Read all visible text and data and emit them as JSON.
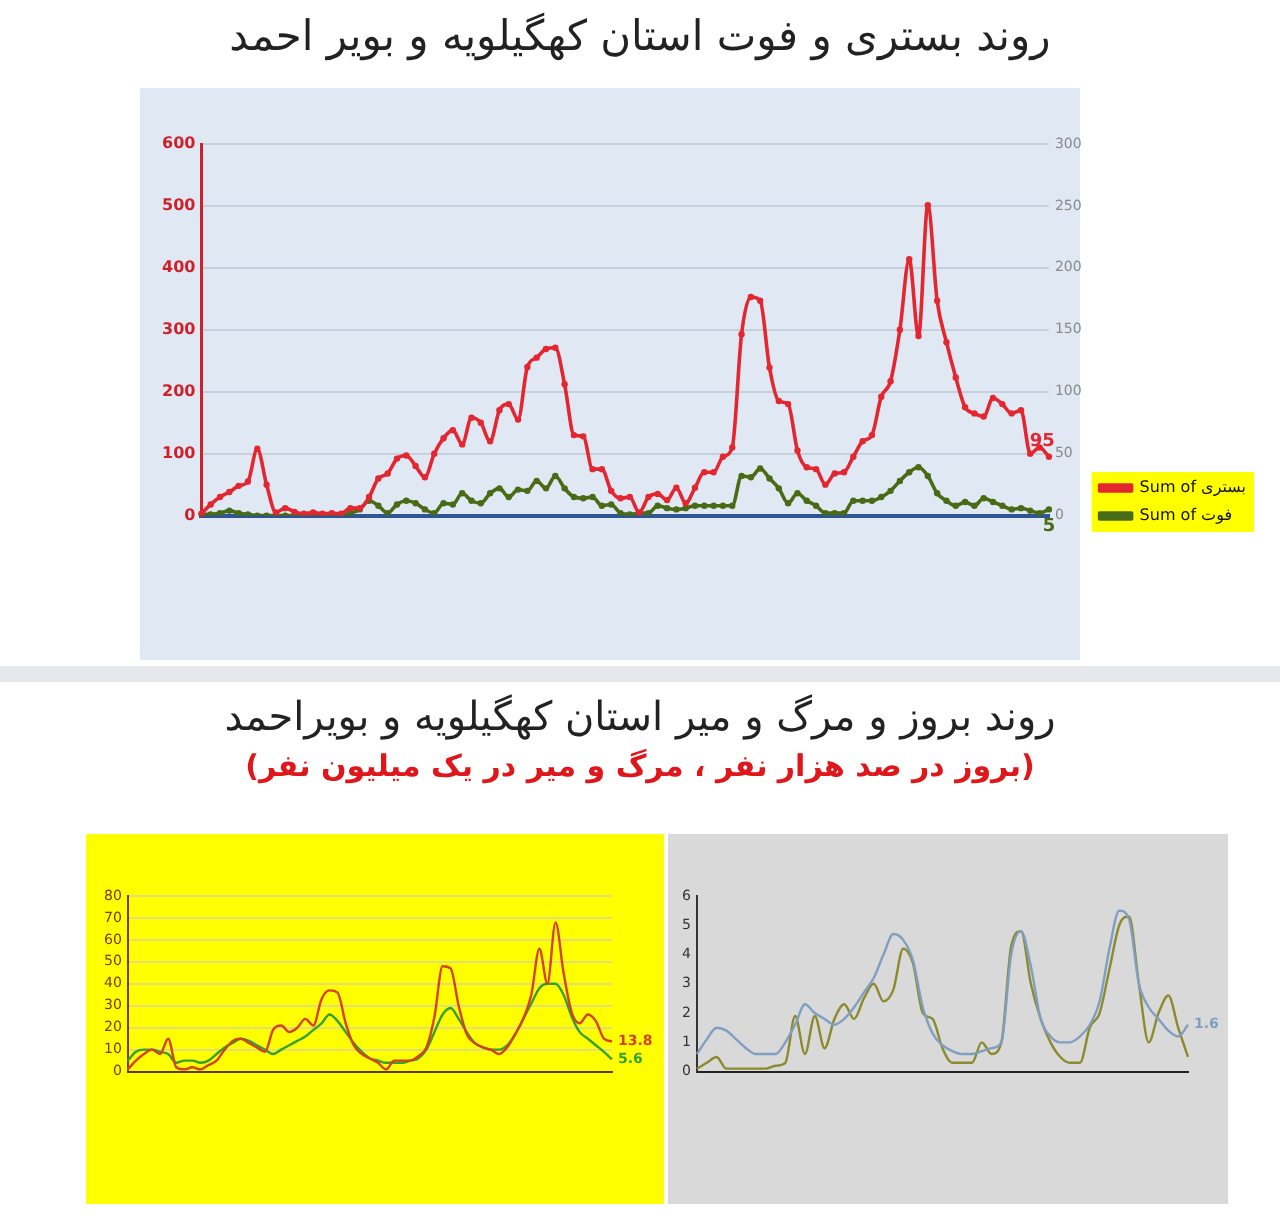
{
  "chart_data": [
    {
      "type": "line",
      "title": "روند بستری و فوت استان کهگیلویه و بویر احمد",
      "categories": [
        null,
        null,
        null,
        null,
        null,
        null,
        null,
        null,
        null,
        null,
        null,
        null,
        null,
        null,
        null,
        null,
        null,
        null,
        null,
        null,
        null,
        null,
        null,
        null,
        null,
        null,
        null,
        null,
        null,
        null,
        null,
        null,
        null,
        null,
        null,
        null,
        null,
        null,
        null,
        null,
        null,
        null,
        null,
        null,
        null,
        null,
        null,
        null,
        null,
        null,
        null,
        null,
        null,
        null,
        null,
        null,
        null,
        null,
        null,
        null,
        null,
        null,
        null,
        null,
        null,
        null,
        null,
        null,
        null,
        null,
        null,
        null,
        null,
        null,
        null,
        null,
        null,
        null,
        null,
        null,
        null,
        null,
        null,
        null,
        null,
        null,
        null,
        null,
        null,
        null,
        null,
        null
      ],
      "series": [
        {
          "name": "Sum of بستری",
          "color": "#e3262f",
          "values": [
            3,
            18,
            30,
            38,
            48,
            55,
            108,
            50,
            5,
            12,
            6,
            3,
            5,
            3,
            4,
            3,
            12,
            12,
            30,
            60,
            68,
            92,
            97,
            80,
            62,
            100,
            125,
            138,
            115,
            158,
            150,
            120,
            170,
            180,
            155,
            240,
            255,
            269,
            271,
            212,
            130,
            128,
            75,
            75,
            40,
            28,
            30,
            5,
            30,
            35,
            25,
            45,
            20,
            45,
            70,
            70,
            95,
            110,
            293,
            353,
            347,
            239,
            185,
            180,
            105,
            78,
            75,
            50,
            68,
            70,
            95,
            120,
            130,
            192,
            217,
            300,
            414,
            290,
            501,
            347,
            280,
            223,
            175,
            165,
            160,
            190,
            180,
            165,
            170,
            100,
            110,
            95
          ],
          "value_labels": [
            null,
            null,
            null,
            null,
            null,
            null,
            null,
            null,
            null,
            null,
            null,
            null,
            null,
            null,
            null,
            null,
            null,
            null,
            null,
            null,
            null,
            null,
            null,
            null,
            null,
            null,
            null,
            null,
            null,
            null,
            null,
            null,
            null,
            null,
            null,
            null,
            null,
            null,
            null,
            null,
            null,
            null,
            null,
            null,
            null,
            null,
            null,
            null,
            null,
            null,
            null,
            null,
            null,
            null,
            null,
            null,
            null,
            null,
            null,
            null,
            null,
            null,
            null,
            null,
            null,
            null,
            null,
            null,
            null,
            null,
            null,
            null,
            null,
            null,
            null,
            null,
            null,
            null,
            null,
            null,
            null,
            null,
            null,
            null,
            null,
            null,
            null,
            null,
            null,
            null,
            null,
            "95"
          ]
        },
        {
          "name": "Sum of فوت",
          "color": "#4a6b16",
          "axis": "y2",
          "values": [
            1,
            1,
            2,
            4,
            2,
            1,
            0,
            0,
            0,
            0,
            0,
            0,
            0,
            0,
            0,
            0,
            2,
            5,
            12,
            8,
            2,
            9,
            12,
            10,
            5,
            2,
            10,
            9,
            18,
            12,
            10,
            18,
            22,
            15,
            21,
            20,
            28,
            22,
            32,
            22,
            15,
            14,
            15,
            8,
            9,
            2,
            1,
            2,
            2,
            8,
            6,
            5,
            6,
            8,
            8,
            8,
            8,
            8,
            32,
            31,
            38,
            30,
            22,
            10,
            18,
            12,
            8,
            2,
            2,
            2,
            12,
            12,
            12,
            15,
            20,
            28,
            35,
            39,
            32,
            18,
            12,
            8,
            11,
            8,
            14,
            11,
            8,
            5,
            6,
            4,
            2,
            5
          ],
          "value_labels": [
            null,
            null,
            null,
            null,
            null,
            null,
            null,
            null,
            null,
            null,
            null,
            null,
            null,
            null,
            null,
            null,
            null,
            null,
            null,
            null,
            null,
            null,
            null,
            null,
            null,
            null,
            null,
            null,
            null,
            null,
            null,
            null,
            null,
            null,
            null,
            null,
            null,
            null,
            null,
            null,
            null,
            null,
            null,
            null,
            null,
            null,
            null,
            null,
            null,
            null,
            null,
            null,
            null,
            null,
            null,
            null,
            null,
            null,
            null,
            null,
            null,
            null,
            null,
            null,
            null,
            null,
            null,
            null,
            null,
            null,
            null,
            null,
            null,
            null,
            null,
            null,
            null,
            null,
            null,
            null,
            null,
            null,
            null,
            null,
            null,
            null,
            null,
            null,
            null,
            null,
            null,
            "5"
          ]
        }
      ],
      "ylim": [
        0,
        600
      ],
      "yticks": [
        0,
        100,
        200,
        300,
        400,
        500,
        600
      ],
      "y2lim": [
        0,
        300
      ],
      "y2ticks": [
        0,
        50,
        100,
        150,
        200,
        250,
        300
      ],
      "grid": "y",
      "legend": "bottom right",
      "marker": "circle"
    },
    {
      "type": "line",
      "title": "روند بروز و مرگ و میر استان کهگیلویه و بویراحمد",
      "subtitle": "(بروز در صد هزار نفر ، مرگ و میر در یک میلیون نفر)",
      "categories": [
        null,
        null,
        null,
        null,
        null,
        null,
        null,
        null,
        null,
        null,
        null,
        null,
        null,
        null,
        null,
        null,
        null,
        null,
        null,
        null,
        null,
        null,
        null,
        null,
        null,
        null,
        null,
        null,
        null,
        null,
        null,
        null,
        null,
        null,
        null,
        null,
        null,
        null,
        null,
        null,
        null,
        null,
        null,
        null,
        null,
        null,
        null,
        null,
        null,
        null,
        null,
        null,
        null,
        null,
        null,
        null,
        null,
        null,
        null,
        null,
        null
      ],
      "series": [
        {
          "color": "#d8401c",
          "values": [
            1,
            5,
            8,
            10,
            8,
            15,
            2,
            1,
            2,
            1,
            3,
            5,
            10,
            14,
            15,
            13,
            11,
            9,
            19,
            21,
            18,
            20,
            24,
            21,
            33,
            37,
            36,
            22,
            12,
            8,
            6,
            4,
            1,
            5,
            5,
            5,
            7,
            11,
            25,
            48,
            47,
            30,
            17,
            13,
            11,
            10,
            8,
            11,
            17,
            24,
            35,
            56,
            40,
            68,
            45,
            27,
            22,
            26,
            23,
            15,
            13.8
          ],
          "value_labels": [
            null,
            null,
            null,
            null,
            null,
            null,
            null,
            null,
            null,
            null,
            null,
            null,
            null,
            null,
            null,
            null,
            null,
            null,
            null,
            null,
            null,
            null,
            null,
            null,
            null,
            null,
            null,
            null,
            null,
            null,
            null,
            null,
            null,
            null,
            null,
            null,
            null,
            null,
            null,
            null,
            null,
            null,
            null,
            null,
            null,
            null,
            null,
            null,
            null,
            null,
            null,
            null,
            null,
            null,
            null,
            null,
            null,
            null,
            null,
            null,
            "13.8"
          ]
        },
        {
          "color": "#35a035",
          "values": [
            5,
            9,
            10,
            10,
            9,
            8,
            4,
            5,
            5,
            4,
            5,
            8,
            11,
            13,
            15,
            14,
            12,
            10,
            8,
            10,
            12,
            14,
            16,
            19,
            22,
            26,
            23,
            18,
            13,
            9,
            6,
            5,
            4,
            4,
            4,
            5,
            6,
            10,
            18,
            26,
            29,
            24,
            18,
            13,
            11,
            10,
            10,
            12,
            17,
            24,
            31,
            38,
            40,
            40,
            35,
            25,
            18,
            15,
            12,
            9,
            5.6
          ],
          "value_labels": [
            null,
            null,
            null,
            null,
            null,
            null,
            null,
            null,
            null,
            null,
            null,
            null,
            null,
            null,
            null,
            null,
            null,
            null,
            null,
            null,
            null,
            null,
            null,
            null,
            null,
            null,
            null,
            null,
            null,
            null,
            null,
            null,
            null,
            null,
            null,
            null,
            null,
            null,
            null,
            null,
            null,
            null,
            null,
            null,
            null,
            null,
            null,
            null,
            null,
            null,
            null,
            null,
            null,
            null,
            null,
            null,
            null,
            null,
            null,
            null,
            "5.6"
          ]
        }
      ],
      "ylim": [
        0,
        80
      ],
      "yticks": [
        0,
        10,
        20,
        30,
        40,
        50,
        60,
        70,
        80
      ],
      "grid": "y"
    },
    {
      "type": "line",
      "categories": [
        null,
        null,
        null,
        null,
        null,
        null,
        null,
        null,
        null,
        null,
        null,
        null,
        null,
        null,
        null,
        null,
        null,
        null,
        null,
        null,
        null,
        null,
        null,
        null,
        null,
        null,
        null,
        null,
        null,
        null,
        null,
        null,
        null,
        null,
        null,
        null,
        null,
        null,
        null,
        null,
        null,
        null,
        null,
        null,
        null,
        null,
        null,
        null,
        null,
        null,
        null
      ],
      "series": [
        {
          "color": "#7f9fc2",
          "values": [
            0.6,
            1.1,
            1.5,
            1.4,
            1.1,
            0.8,
            0.6,
            0.6,
            0.6,
            1,
            1.6,
            2.3,
            2,
            1.8,
            1.6,
            1.8,
            2.2,
            2.7,
            3.2,
            4,
            4.7,
            4.5,
            3.8,
            2.2,
            1.3,
            0.9,
            0.7,
            0.6,
            0.6,
            0.7,
            0.8,
            1,
            4,
            4.8,
            3.6,
            1.8,
            1.2,
            1,
            1,
            1.2,
            1.6,
            2.4,
            4.2,
            5.5,
            5.2,
            3,
            2.2,
            1.8,
            1.4,
            1.2,
            1.6
          ],
          "value_labels": [
            null,
            null,
            null,
            null,
            null,
            null,
            null,
            null,
            null,
            null,
            null,
            null,
            null,
            null,
            null,
            null,
            null,
            null,
            null,
            null,
            null,
            null,
            null,
            null,
            null,
            null,
            null,
            null,
            null,
            null,
            null,
            null,
            null,
            null,
            null,
            null,
            null,
            null,
            null,
            null,
            null,
            null,
            null,
            null,
            null,
            null,
            null,
            null,
            null,
            null,
            "1.6"
          ]
        },
        {
          "color": "#8c8a2c",
          "values": [
            0.1,
            0.3,
            0.5,
            0.1,
            0.1,
            0.1,
            0.1,
            0.1,
            0.2,
            0.3,
            1.9,
            0.6,
            1.9,
            0.8,
            1.8,
            2.3,
            1.8,
            2.5,
            3,
            2.4,
            2.8,
            4.2,
            3.7,
            2,
            1.8,
            0.8,
            0.3,
            0.3,
            0.3,
            1,
            0.6,
            1,
            4.3,
            4.8,
            3,
            1.8,
            1,
            0.5,
            0.3,
            0.3,
            1.5,
            2,
            3.5,
            5,
            5.3,
            3,
            1,
            2,
            2.6,
            1.5,
            0.5
          ]
        }
      ],
      "ylim": [
        0,
        6
      ],
      "yticks": [
        0,
        1,
        2,
        3,
        4,
        5,
        6
      ]
    }
  ]
}
